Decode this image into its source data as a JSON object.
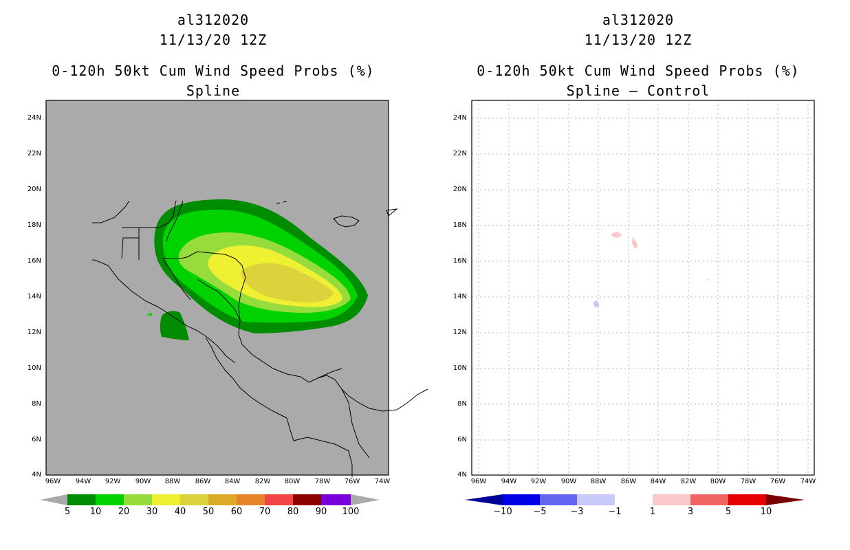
{
  "left_panel": {
    "storm_id": "al312020",
    "datetime": "11/13/20 12Z",
    "product": "0-120h 50kt Cum Wind Speed Probs (%)",
    "subtitle": "Spline",
    "colorbar": {
      "labels": [
        "5",
        "10",
        "20",
        "30",
        "40",
        "50",
        "60",
        "70",
        "80",
        "90",
        "100"
      ],
      "colors": [
        "#008c00",
        "#00d200",
        "#96dc3c",
        "#f0f032",
        "#dcd23c",
        "#dcaa28",
        "#e68228",
        "#f04646",
        "#8c0000",
        "#7800dc"
      ]
    }
  },
  "right_panel": {
    "storm_id": "al312020",
    "datetime": "11/13/20 12Z",
    "product": "0-120h 50kt Cum Wind Speed Probs (%)",
    "subtitle": "Spline – Control",
    "colorbar": {
      "labels": [
        "−10",
        "−5",
        "−3",
        "−1",
        "1",
        "3",
        "5",
        "10"
      ],
      "colors": [
        "#0000e6",
        "#6464f0",
        "#c8c8fa",
        "#ffffff",
        "#fac8c8",
        "#f06464",
        "#e60000"
      ]
    }
  },
  "map_axes": {
    "lat_labels": [
      "24N",
      "22N",
      "20N",
      "18N",
      "16N",
      "14N",
      "12N",
      "10N",
      "8N",
      "6N",
      "4N"
    ],
    "lon_labels": [
      "96W",
      "94W",
      "92W",
      "90W",
      "88W",
      "86W",
      "84W",
      "82W",
      "80W",
      "78W",
      "76W",
      "74W"
    ]
  },
  "colors": {
    "land_ocean_left": "#aaaaaa",
    "grid": "#b4b4b4",
    "coast": "#000000"
  }
}
